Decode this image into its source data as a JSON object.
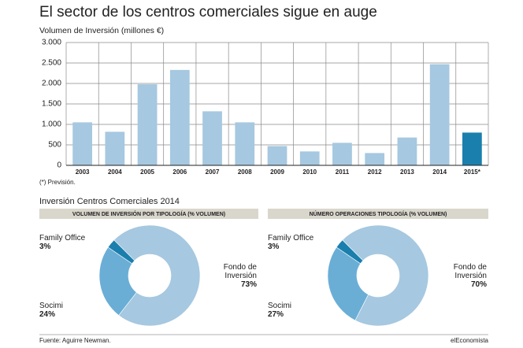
{
  "title": "El sector de los centros comerciales sigue en auge",
  "footnote": "(*) Previsión.",
  "section_title": "Inversión Centros Comerciales 2014",
  "source": "Fuente: Aguirre Newman.",
  "brand": "elEconomista",
  "chart_data": [
    {
      "type": "bar",
      "title": "Volumen de Inversión (millones €)",
      "categories": [
        "2003",
        "2004",
        "2005",
        "2006",
        "2007",
        "2008",
        "2009",
        "2010",
        "2011",
        "2012",
        "2013",
        "2014",
        "2015*"
      ],
      "values": [
        1050,
        820,
        1980,
        2330,
        1320,
        1050,
        470,
        340,
        550,
        300,
        680,
        2470,
        800
      ],
      "colors": [
        "#a6c8e0",
        "#a6c8e0",
        "#a6c8e0",
        "#a6c8e0",
        "#a6c8e0",
        "#a6c8e0",
        "#a6c8e0",
        "#a6c8e0",
        "#a6c8e0",
        "#a6c8e0",
        "#a6c8e0",
        "#a6c8e0",
        "#1b7fad"
      ],
      "ylim": [
        0,
        3000
      ],
      "yticks": [
        0,
        500,
        {
          "value": 1000,
          "label": "1.000"
        },
        {
          "value": 1500,
          "label": "1.500"
        },
        {
          "value": 2000,
          "label": "2.000"
        },
        {
          "value": 2500,
          "label": "2.500"
        },
        {
          "value": 3000,
          "label": "3.000"
        }
      ],
      "grid": true
    },
    {
      "type": "pie",
      "donut": true,
      "title": "VOLUMEN DE INVERSIÓN POR TIPOLOGÍA (% VOLUMEN)",
      "categories": [
        "Family Office",
        "Socimi",
        "Fondo de Inversión"
      ],
      "values": [
        3,
        24,
        73
      ],
      "value_labels": [
        "3%",
        "24%",
        "73%"
      ],
      "colors": [
        "#1b7fad",
        "#6aaed6",
        "#a6c8e0"
      ]
    },
    {
      "type": "pie",
      "donut": true,
      "title": "NÚMERO OPERACIONES TIPOLOGÍA (% VOLUMEN)",
      "categories": [
        "Family Office",
        "Socimi",
        "Fondo de Inversión"
      ],
      "values": [
        3,
        27,
        70
      ],
      "value_labels": [
        "3%",
        "27%",
        "70%"
      ],
      "colors": [
        "#1b7fad",
        "#6aaed6",
        "#a6c8e0"
      ]
    }
  ]
}
